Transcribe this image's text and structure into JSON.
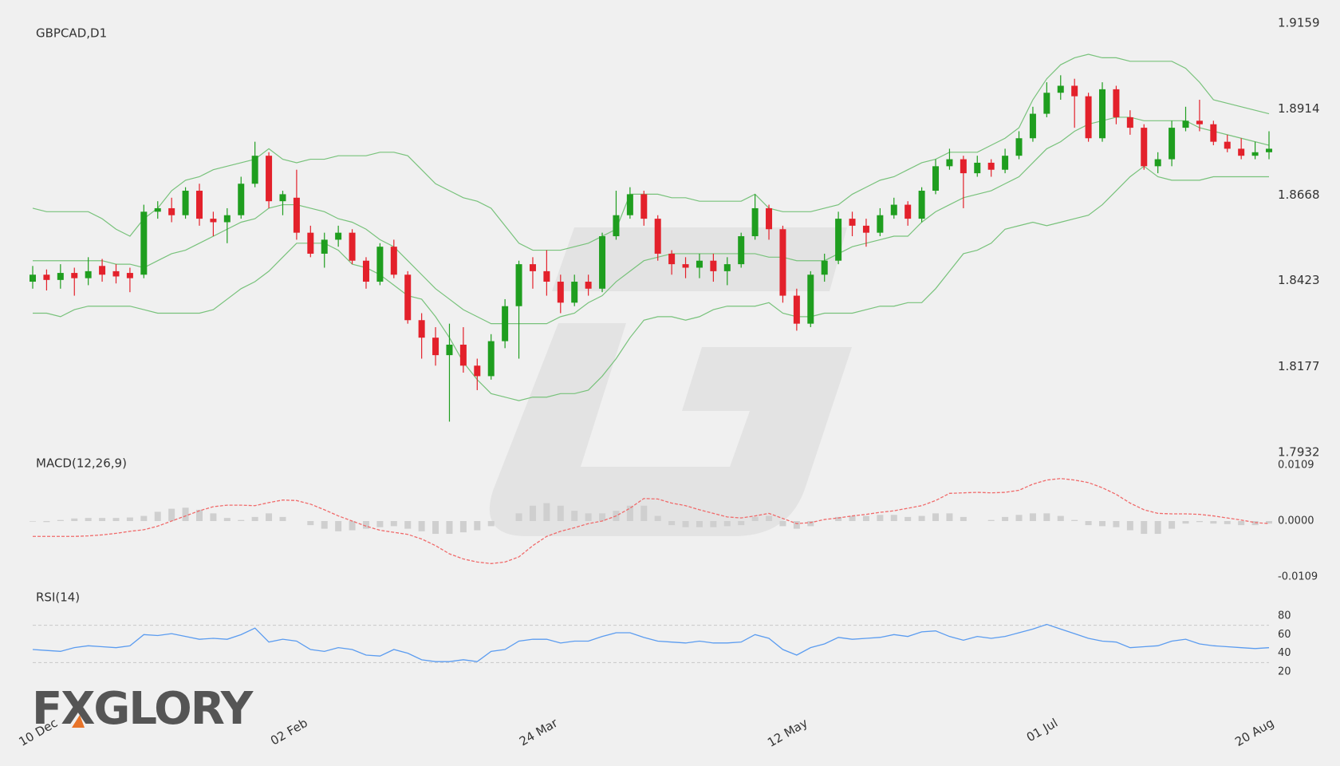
{
  "chart_data": [
    {
      "type": "candlestick",
      "title": "GBPCAD,D1",
      "categories": [
        "10 Dec",
        null,
        null,
        null,
        null,
        null,
        null,
        null,
        null,
        null,
        null,
        null,
        null,
        null,
        null,
        null,
        null,
        null,
        "02 Feb",
        null,
        null,
        null,
        null,
        null,
        null,
        null,
        null,
        null,
        null,
        null,
        null,
        null,
        null,
        null,
        null,
        null,
        "24 Mar",
        null,
        null,
        null,
        null,
        null,
        null,
        null,
        null,
        null,
        null,
        null,
        null,
        null,
        null,
        null,
        null,
        null,
        "12 May",
        null,
        null,
        null,
        null,
        null,
        null,
        null,
        null,
        null,
        null,
        null,
        null,
        null,
        null,
        null,
        null,
        null,
        "01 Jul",
        null,
        null,
        null,
        null,
        null,
        null,
        null,
        null,
        null,
        null,
        null,
        null,
        null,
        null,
        null,
        null,
        "20 Aug"
      ],
      "open": [
        1.842,
        1.844,
        1.8425,
        1.8445,
        1.843,
        1.8465,
        1.845,
        1.8445,
        1.844,
        1.862,
        1.863,
        1.861,
        1.868,
        1.86,
        1.859,
        1.861,
        1.87,
        1.878,
        1.865,
        1.866,
        1.856,
        1.85,
        1.854,
        1.856,
        1.848,
        1.842,
        1.852,
        1.844,
        1.831,
        1.826,
        1.821,
        1.824,
        1.818,
        1.815,
        1.825,
        1.835,
        1.847,
        1.845,
        1.842,
        1.836,
        1.842,
        1.84,
        1.855,
        1.861,
        1.867,
        1.86,
        1.85,
        1.847,
        1.846,
        1.848,
        1.845,
        1.847,
        1.855,
        1.863,
        1.857,
        1.838,
        1.83,
        1.844,
        1.848,
        1.86,
        1.858,
        1.856,
        1.861,
        1.864,
        1.86,
        1.868,
        1.875,
        1.877,
        1.873,
        1.876,
        1.874,
        1.878,
        1.883,
        1.89,
        1.896,
        1.898,
        1.895,
        1.883,
        1.897,
        1.889,
        1.886,
        1.875,
        1.877,
        1.886,
        1.888,
        1.887,
        1.882,
        1.88,
        1.878,
        1.879
      ],
      "high": [
        1.8465,
        1.8455,
        1.847,
        1.846,
        1.849,
        1.8485,
        1.847,
        1.846,
        1.864,
        1.865,
        1.866,
        1.869,
        1.87,
        1.862,
        1.863,
        1.872,
        1.882,
        1.879,
        1.868,
        1.874,
        1.858,
        1.856,
        1.858,
        1.857,
        1.849,
        1.853,
        1.854,
        1.845,
        1.833,
        1.829,
        1.83,
        1.829,
        1.82,
        1.827,
        1.837,
        1.848,
        1.849,
        1.851,
        1.844,
        1.844,
        1.844,
        1.856,
        1.868,
        1.869,
        1.868,
        1.861,
        1.851,
        1.849,
        1.85,
        1.85,
        1.849,
        1.856,
        1.867,
        1.864,
        1.858,
        1.84,
        1.845,
        1.85,
        1.862,
        1.862,
        1.86,
        1.863,
        1.866,
        1.865,
        1.869,
        1.877,
        1.88,
        1.878,
        1.878,
        1.877,
        1.88,
        1.885,
        1.892,
        1.899,
        1.901,
        1.9,
        1.896,
        1.899,
        1.898,
        1.891,
        1.887,
        1.879,
        1.888,
        1.892,
        1.894,
        1.888,
        1.884,
        1.883,
        1.882,
        1.885
      ],
      "low": [
        1.84,
        1.8395,
        1.84,
        1.838,
        1.841,
        1.842,
        1.8415,
        1.839,
        1.843,
        1.86,
        1.859,
        1.86,
        1.858,
        1.855,
        1.853,
        1.86,
        1.869,
        1.863,
        1.861,
        1.854,
        1.849,
        1.846,
        1.852,
        1.847,
        1.84,
        1.841,
        1.843,
        1.83,
        1.82,
        1.818,
        1.802,
        1.816,
        1.811,
        1.814,
        1.823,
        1.82,
        1.84,
        1.838,
        1.833,
        1.835,
        1.838,
        1.839,
        1.854,
        1.86,
        1.858,
        1.848,
        1.844,
        1.843,
        1.843,
        1.842,
        1.841,
        1.846,
        1.854,
        1.854,
        1.836,
        1.828,
        1.829,
        1.842,
        1.847,
        1.855,
        1.852,
        1.855,
        1.86,
        1.858,
        1.859,
        1.867,
        1.874,
        1.863,
        1.872,
        1.872,
        1.873,
        1.877,
        1.882,
        1.889,
        1.894,
        1.886,
        1.882,
        1.882,
        1.887,
        1.884,
        1.874,
        1.873,
        1.875,
        1.885,
        1.885,
        1.881,
        1.879,
        1.877,
        1.877,
        1.877
      ],
      "close": [
        1.844,
        1.8425,
        1.8445,
        1.843,
        1.845,
        1.844,
        1.8435,
        1.843,
        1.862,
        1.863,
        1.861,
        1.868,
        1.86,
        1.859,
        1.861,
        1.87,
        1.878,
        1.865,
        1.867,
        1.856,
        1.85,
        1.854,
        1.856,
        1.848,
        1.842,
        1.852,
        1.844,
        1.831,
        1.826,
        1.821,
        1.824,
        1.818,
        1.815,
        1.825,
        1.835,
        1.847,
        1.845,
        1.842,
        1.836,
        1.842,
        1.84,
        1.855,
        1.861,
        1.867,
        1.86,
        1.85,
        1.847,
        1.846,
        1.848,
        1.845,
        1.847,
        1.855,
        1.863,
        1.857,
        1.838,
        1.83,
        1.844,
        1.848,
        1.86,
        1.858,
        1.856,
        1.861,
        1.864,
        1.86,
        1.868,
        1.875,
        1.877,
        1.873,
        1.876,
        1.874,
        1.878,
        1.883,
        1.89,
        1.896,
        1.898,
        1.895,
        1.883,
        1.897,
        1.889,
        1.886,
        1.875,
        1.877,
        1.886,
        1.888,
        1.887,
        1.882,
        1.88,
        1.878,
        1.879,
        1.88
      ],
      "up_color": "#1f9e1f",
      "down_color": "#e3212b",
      "bands": [
        {
          "color": "#78c27b",
          "values": [
            1.863,
            1.862,
            1.862,
            1.862,
            1.862,
            1.86,
            1.857,
            1.855,
            1.86,
            1.863,
            1.868,
            1.871,
            1.872,
            1.874,
            1.875,
            1.876,
            1.877,
            1.88,
            1.877,
            1.876,
            1.877,
            1.877,
            1.878,
            1.878,
            1.878,
            1.879,
            1.879,
            1.878,
            1.874,
            1.87,
            1.868,
            1.866,
            1.865,
            1.863,
            1.858,
            1.853,
            1.851,
            1.851,
            1.851,
            1.852,
            1.853,
            1.855,
            1.857,
            1.867,
            1.867,
            1.867,
            1.866,
            1.866,
            1.865,
            1.865,
            1.865,
            1.865,
            1.867,
            1.863,
            1.862,
            1.862,
            1.862,
            1.863,
            1.864,
            1.867,
            1.869,
            1.871,
            1.872,
            1.874,
            1.876,
            1.877,
            1.879,
            1.879,
            1.879,
            1.881,
            1.883,
            1.886,
            1.894,
            1.9,
            1.904,
            1.906,
            1.907,
            1.906,
            1.906,
            1.905,
            1.905,
            1.905,
            1.905,
            1.903,
            1.899,
            1.894,
            1.893,
            1.892,
            1.891,
            1.89
          ]
        },
        {
          "color": "#78c27b",
          "values": [
            1.848,
            1.848,
            1.848,
            1.848,
            1.848,
            1.848,
            1.847,
            1.847,
            1.846,
            1.848,
            1.85,
            1.851,
            1.853,
            1.855,
            1.857,
            1.859,
            1.86,
            1.863,
            1.864,
            1.864,
            1.863,
            1.862,
            1.86,
            1.859,
            1.857,
            1.854,
            1.852,
            1.848,
            1.844,
            1.84,
            1.837,
            1.834,
            1.832,
            1.83,
            1.83,
            1.83,
            1.83,
            1.83,
            1.832,
            1.833,
            1.836,
            1.838,
            1.842,
            1.845,
            1.848,
            1.849,
            1.85,
            1.85,
            1.85,
            1.85,
            1.85,
            1.85,
            1.85,
            1.849,
            1.849,
            1.848,
            1.848,
            1.848,
            1.85,
            1.852,
            1.853,
            1.854,
            1.855,
            1.855,
            1.859,
            1.862,
            1.864,
            1.866,
            1.867,
            1.868,
            1.87,
            1.872,
            1.876,
            1.88,
            1.882,
            1.885,
            1.887,
            1.888,
            1.889,
            1.889,
            1.888,
            1.888,
            1.888,
            1.888,
            1.886,
            1.885,
            1.884,
            1.883,
            1.882,
            1.881
          ]
        },
        {
          "color": "#78c27b",
          "values": [
            1.833,
            1.833,
            1.832,
            1.834,
            1.835,
            1.835,
            1.835,
            1.835,
            1.834,
            1.833,
            1.833,
            1.833,
            1.833,
            1.834,
            1.837,
            1.84,
            1.842,
            1.845,
            1.849,
            1.853,
            1.853,
            1.853,
            1.851,
            1.847,
            1.846,
            1.844,
            1.841,
            1.838,
            1.837,
            1.832,
            1.826,
            1.819,
            1.814,
            1.81,
            1.809,
            1.808,
            1.809,
            1.809,
            1.81,
            1.81,
            1.811,
            1.815,
            1.82,
            1.826,
            1.831,
            1.832,
            1.832,
            1.831,
            1.832,
            1.834,
            1.835,
            1.835,
            1.835,
            1.836,
            1.833,
            1.832,
            1.832,
            1.833,
            1.833,
            1.833,
            1.834,
            1.835,
            1.835,
            1.836,
            1.836,
            1.84,
            1.845,
            1.85,
            1.851,
            1.853,
            1.857,
            1.858,
            1.859,
            1.858,
            1.859,
            1.86,
            1.861,
            1.864,
            1.868,
            1.872,
            1.875,
            1.872,
            1.871,
            1.871,
            1.871,
            1.872,
            1.872,
            1.872,
            1.872,
            1.872
          ]
        }
      ],
      "ylim": [
        1.7932,
        1.9159
      ],
      "yticks": [
        1.7932,
        1.8177,
        1.8423,
        1.8668,
        1.8914,
        1.9159
      ]
    },
    {
      "type": "macd",
      "title": "MACD(12,26,9)",
      "histogram": {
        "color": "#cfcfcf",
        "values": [
          -0.0001,
          -0.0002,
          0.0002,
          0.0005,
          0.0006,
          0.0006,
          0.0006,
          0.0007,
          0.001,
          0.0018,
          0.0024,
          0.0026,
          0.0022,
          0.0015,
          0.0006,
          0.0002,
          0.0008,
          0.0015,
          0.0008,
          0,
          -0.0008,
          -0.0015,
          -0.002,
          -0.0018,
          -0.0015,
          -0.0012,
          -0.001,
          -0.0015,
          -0.002,
          -0.0025,
          -0.0025,
          -0.0022,
          -0.0018,
          -0.001,
          0,
          0.0015,
          0.003,
          0.0035,
          0.003,
          0.002,
          0.0015,
          0.0015,
          0.002,
          0.003,
          0.003,
          0.001,
          -0.0008,
          -0.0012,
          -0.0012,
          -0.0012,
          -0.001,
          -0.0008,
          0.0008,
          0.001,
          -0.001,
          -0.0015,
          -0.001,
          0,
          0.0008,
          0.001,
          0.001,
          0.0012,
          0.0012,
          0.0008,
          0.001,
          0.0015,
          0.0015,
          0.0008,
          0,
          0.0002,
          0.0008,
          0.0012,
          0.0015,
          0.0015,
          0.001,
          0.0002,
          -0.0008,
          -0.001,
          -0.0012,
          -0.0018,
          -0.0025,
          -0.0025,
          -0.0015,
          -0.0005,
          -0.0002,
          -0.0005,
          -0.0006,
          -0.0008,
          -0.0008,
          -0.0005
        ]
      },
      "line": {
        "color": "#f06a6a",
        "values": [
          -0.003,
          -0.003,
          -0.003,
          -0.003,
          -0.0029,
          -0.0027,
          -0.0024,
          -0.002,
          -0.0017,
          -0.001,
          0,
          0.001,
          0.002,
          0.0028,
          0.0031,
          0.0031,
          0.003,
          0.0036,
          0.0041,
          0.004,
          0.0033,
          0.0022,
          0.001,
          0,
          -0.001,
          -0.0018,
          -0.0022,
          -0.0026,
          -0.0035,
          -0.0048,
          -0.0064,
          -0.0074,
          -0.008,
          -0.0083,
          -0.008,
          -0.007,
          -0.0048,
          -0.003,
          -0.002,
          -0.0013,
          -0.0005,
          0,
          0.001,
          0.0025,
          0.0044,
          0.0043,
          0.0035,
          0.003,
          0.0022,
          0.0015,
          0.0008,
          0.0006,
          0.001,
          0.0015,
          0.0005,
          -0.0005,
          -0.0003,
          0.0003,
          0.0006,
          0.001,
          0.0013,
          0.0017,
          0.002,
          0.0025,
          0.003,
          0.004,
          0.0054,
          0.0055,
          0.0056,
          0.0055,
          0.0056,
          0.006,
          0.0072,
          0.008,
          0.0083,
          0.008,
          0.0075,
          0.0065,
          0.0052,
          0.0035,
          0.0022,
          0.0015,
          0.0014,
          0.0014,
          0.0013,
          0.001,
          0.0006,
          0.0002,
          -0.0003,
          -0.0005
        ]
      },
      "ylim": [
        -0.0109,
        0.0109
      ],
      "yticks": [
        -0.0109,
        {
          "value": 0,
          "label": "0.0000"
        },
        0.0109
      ]
    },
    {
      "type": "line",
      "title": "RSI(14)",
      "color": "#5b9cf0",
      "values": [
        44,
        43,
        42,
        46,
        48,
        47,
        46,
        48,
        60,
        59,
        61,
        58,
        55,
        56,
        55,
        60,
        67,
        52,
        55,
        53,
        44,
        42,
        46,
        44,
        38,
        37,
        44,
        40,
        33,
        31,
        31,
        33,
        31,
        42,
        44,
        53,
        55,
        55,
        51,
        53,
        53,
        58,
        62,
        62,
        57,
        53,
        52,
        51,
        53,
        51,
        51,
        52,
        60,
        56,
        44,
        38,
        46,
        50,
        57,
        55,
        56,
        57,
        60,
        58,
        63,
        64,
        58,
        54,
        58,
        56,
        58,
        62,
        66,
        71,
        66,
        61,
        56,
        53,
        52,
        46,
        47,
        48,
        53,
        55,
        50,
        48,
        47,
        46,
        45,
        46
      ],
      "levels": [
        30,
        70
      ],
      "ylim": [
        20,
        80
      ],
      "yticks": [
        20,
        40,
        60,
        80
      ]
    }
  ],
  "logo": "FXGLORY"
}
